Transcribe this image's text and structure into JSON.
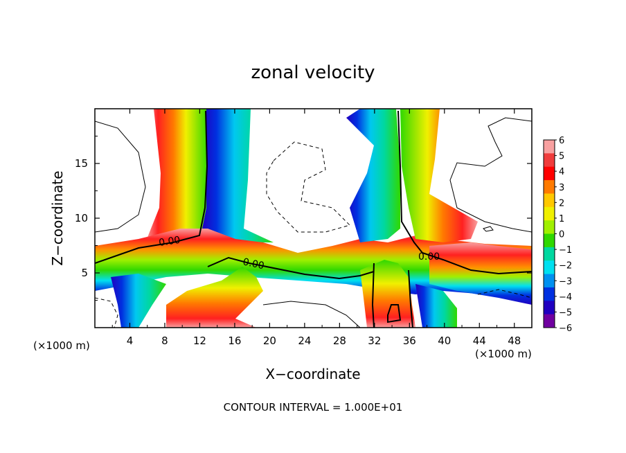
{
  "chart_data": {
    "type": "heatmap",
    "title": "zonal velocity",
    "xlabel": "X−coordinate",
    "ylabel": "Z−coordinate",
    "x_unit_left": "(×1000 m)",
    "x_unit_right": "(×1000 m)",
    "xlim": [
      0,
      50
    ],
    "ylim": [
      0,
      20
    ],
    "x_ticks": [
      4,
      8,
      12,
      16,
      20,
      24,
      28,
      32,
      36,
      40,
      44,
      48
    ],
    "y_ticks": [
      5,
      10,
      15
    ],
    "colorbar": {
      "levels": [
        6,
        5,
        4,
        3,
        2,
        1,
        0,
        -1,
        -2,
        -3,
        -4,
        -5,
        -6
      ],
      "level_labels": [
        "6",
        "5",
        "4",
        "3",
        "2",
        "1",
        "0",
        "−1",
        "−2",
        "−3",
        "−4",
        "−5",
        "−6"
      ],
      "colors": [
        "#f8a0a0",
        "#f03c3c",
        "#ff0000",
        "#ff7a00",
        "#ffc800",
        "#f0f000",
        "#a0f000",
        "#30d800",
        "#00d8a0",
        "#00e0f0",
        "#0090f0",
        "#0030e0",
        "#2000c0",
        "#7000a0"
      ]
    },
    "contour_labels": [
      "0.00",
      "0.00",
      "0.00"
    ],
    "footer": "CONTOUR INTERVAL = 1.000E+01",
    "grid": false,
    "legend": "right"
  }
}
